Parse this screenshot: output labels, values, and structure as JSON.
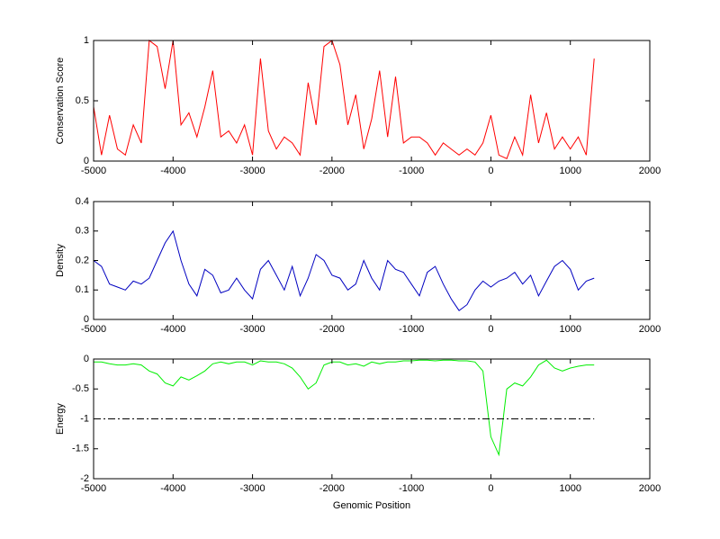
{
  "chart_data": [
    {
      "type": "line",
      "ylabel": "Conservation Score",
      "xlim": [
        -5000,
        2000
      ],
      "xticks": [
        -5000,
        -4000,
        -3000,
        -2000,
        -1000,
        0,
        1000,
        2000
      ],
      "ylim": [
        0,
        1
      ],
      "yticks": [
        0,
        0.5,
        1
      ],
      "series": [
        {
          "color": "#ff0000",
          "x": [
            -5000,
            -4900,
            -4800,
            -4700,
            -4600,
            -4500,
            -4400,
            -4300,
            -4200,
            -4100,
            -4000,
            -3900,
            -3800,
            -3700,
            -3600,
            -3500,
            -3400,
            -3300,
            -3200,
            -3100,
            -3000,
            -2900,
            -2800,
            -2700,
            -2600,
            -2500,
            -2400,
            -2300,
            -2200,
            -2100,
            -2000,
            -1900,
            -1800,
            -1700,
            -1600,
            -1500,
            -1400,
            -1300,
            -1200,
            -1100,
            -1000,
            -900,
            -800,
            -700,
            -600,
            -500,
            -400,
            -300,
            -200,
            -100,
            0,
            100,
            200,
            300,
            400,
            500,
            600,
            700,
            800,
            900,
            1000,
            1100,
            1200,
            1300
          ],
          "values": [
            0.45,
            0.05,
            0.38,
            0.1,
            0.05,
            0.3,
            0.15,
            1,
            0.95,
            0.6,
            1,
            0.3,
            0.4,
            0.2,
            0.45,
            0.75,
            0.2,
            0.25,
            0.15,
            0.3,
            0.05,
            0.85,
            0.25,
            0.1,
            0.2,
            0.15,
            0.05,
            0.65,
            0.3,
            0.95,
            1,
            0.8,
            0.3,
            0.55,
            0.1,
            0.35,
            0.75,
            0.2,
            0.7,
            0.15,
            0.2,
            0.2,
            0.15,
            0.05,
            0.15,
            0.1,
            0.05,
            0.1,
            0.05,
            0.15,
            0.38,
            0.05,
            0.02,
            0.2,
            0.05,
            0.55,
            0.15,
            0.4,
            0.1,
            0.2,
            0.1,
            0.2,
            0.05,
            0.85
          ]
        }
      ]
    },
    {
      "type": "line",
      "ylabel": "Density",
      "xlim": [
        -5000,
        2000
      ],
      "xticks": [
        -5000,
        -4000,
        -3000,
        -2000,
        -1000,
        0,
        1000,
        2000
      ],
      "ylim": [
        0,
        0.4
      ],
      "yticks": [
        0,
        0.1,
        0.2,
        0.3,
        0.4
      ],
      "series": [
        {
          "color": "#0000c0",
          "x": [
            -5000,
            -4900,
            -4800,
            -4700,
            -4600,
            -4500,
            -4400,
            -4300,
            -4200,
            -4100,
            -4000,
            -3900,
            -3800,
            -3700,
            -3600,
            -3500,
            -3400,
            -3300,
            -3200,
            -3100,
            -3000,
            -2900,
            -2800,
            -2700,
            -2600,
            -2500,
            -2400,
            -2300,
            -2200,
            -2100,
            -2000,
            -1900,
            -1800,
            -1700,
            -1600,
            -1500,
            -1400,
            -1300,
            -1200,
            -1100,
            -1000,
            -900,
            -800,
            -700,
            -600,
            -500,
            -400,
            -300,
            -200,
            -100,
            0,
            100,
            200,
            300,
            400,
            500,
            600,
            700,
            800,
            900,
            1000,
            1100,
            1200,
            1300
          ],
          "values": [
            0.2,
            0.18,
            0.12,
            0.11,
            0.1,
            0.13,
            0.12,
            0.14,
            0.2,
            0.26,
            0.3,
            0.2,
            0.12,
            0.08,
            0.17,
            0.15,
            0.09,
            0.1,
            0.14,
            0.1,
            0.07,
            0.17,
            0.2,
            0.15,
            0.1,
            0.18,
            0.08,
            0.14,
            0.22,
            0.2,
            0.15,
            0.14,
            0.1,
            0.12,
            0.2,
            0.14,
            0.1,
            0.2,
            0.17,
            0.16,
            0.12,
            0.08,
            0.16,
            0.18,
            0.12,
            0.07,
            0.03,
            0.05,
            0.1,
            0.13,
            0.11,
            0.13,
            0.14,
            0.16,
            0.12,
            0.15,
            0.08,
            0.13,
            0.18,
            0.2,
            0.17,
            0.1,
            0.13,
            0.14
          ]
        }
      ]
    },
    {
      "type": "line",
      "ylabel": "Energy",
      "xlabel": "Genomic Position",
      "xlim": [
        -5000,
        2000
      ],
      "xticks": [
        -5000,
        -4000,
        -3000,
        -2000,
        -1000,
        0,
        1000,
        2000
      ],
      "ylim": [
        -2,
        0
      ],
      "yticks": [
        0,
        -0.5,
        -1,
        -1.5,
        -2
      ],
      "series": [
        {
          "color": "#00ee00",
          "x": [
            -5000,
            -4900,
            -4800,
            -4700,
            -4600,
            -4500,
            -4400,
            -4300,
            -4200,
            -4100,
            -4000,
            -3900,
            -3800,
            -3700,
            -3600,
            -3500,
            -3400,
            -3300,
            -3200,
            -3100,
            -3000,
            -2900,
            -2800,
            -2700,
            -2600,
            -2500,
            -2400,
            -2300,
            -2200,
            -2100,
            -2000,
            -1900,
            -1800,
            -1700,
            -1600,
            -1500,
            -1400,
            -1300,
            -1200,
            -1100,
            -1000,
            -900,
            -800,
            -700,
            -600,
            -500,
            -400,
            -300,
            -200,
            -100,
            0,
            100,
            200,
            300,
            400,
            500,
            600,
            700,
            800,
            900,
            1000,
            1100,
            1200,
            1300
          ],
          "values": [
            -0.05,
            -0.05,
            -0.08,
            -0.1,
            -0.1,
            -0.08,
            -0.1,
            -0.2,
            -0.25,
            -0.4,
            -0.45,
            -0.3,
            -0.35,
            -0.28,
            -0.2,
            -0.08,
            -0.05,
            -0.08,
            -0.05,
            -0.05,
            -0.1,
            -0.03,
            -0.05,
            -0.05,
            -0.08,
            -0.15,
            -0.3,
            -0.5,
            -0.4,
            -0.1,
            -0.05,
            -0.05,
            -0.1,
            -0.08,
            -0.12,
            -0.05,
            -0.08,
            -0.05,
            -0.05,
            -0.03,
            -0.03,
            -0.02,
            -0.02,
            -0.03,
            -0.02,
            -0.02,
            -0.03,
            -0.03,
            -0.05,
            -0.2,
            -1.3,
            -1.6,
            -0.5,
            -0.4,
            -0.45,
            -0.3,
            -0.1,
            -0.02,
            -0.15,
            -0.2,
            -0.15,
            -0.12,
            -0.1,
            -0.1
          ]
        },
        {
          "color": "#000000",
          "linestyle": "dashdot",
          "x": [
            -5000,
            1300
          ],
          "values": [
            -1,
            -1
          ]
        }
      ]
    }
  ]
}
